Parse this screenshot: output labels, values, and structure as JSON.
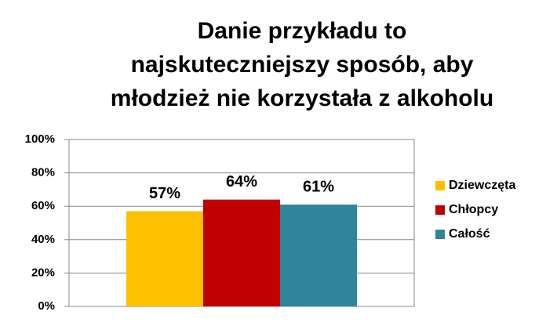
{
  "chart_data": {
    "type": "bar",
    "title": "Danie przykładu to\nnajskuteczniejszy sposób, aby\nmłodzież nie korzystała z alkoholu",
    "categories": [
      null
    ],
    "series": [
      {
        "name": "Dziewczęta",
        "color": "#ffc000",
        "values": [
          57
        ],
        "value_labels": [
          "57%"
        ]
      },
      {
        "name": "Chłopcy",
        "color": "#c00000",
        "values": [
          64
        ],
        "value_labels": [
          "64%"
        ]
      },
      {
        "name": "Całość",
        "color": "#31849b",
        "values": [
          61
        ],
        "value_labels": [
          "61%"
        ]
      }
    ],
    "ylim": [
      0,
      100
    ],
    "yticks": [
      {
        "value": 0,
        "label": "0%"
      },
      {
        "value": 20,
        "label": "20%"
      },
      {
        "value": 40,
        "label": "40%"
      },
      {
        "value": 60,
        "label": "60%"
      },
      {
        "value": 80,
        "label": "80%"
      },
      {
        "value": 100,
        "label": "100%"
      }
    ],
    "grid": true,
    "legend": "right"
  }
}
